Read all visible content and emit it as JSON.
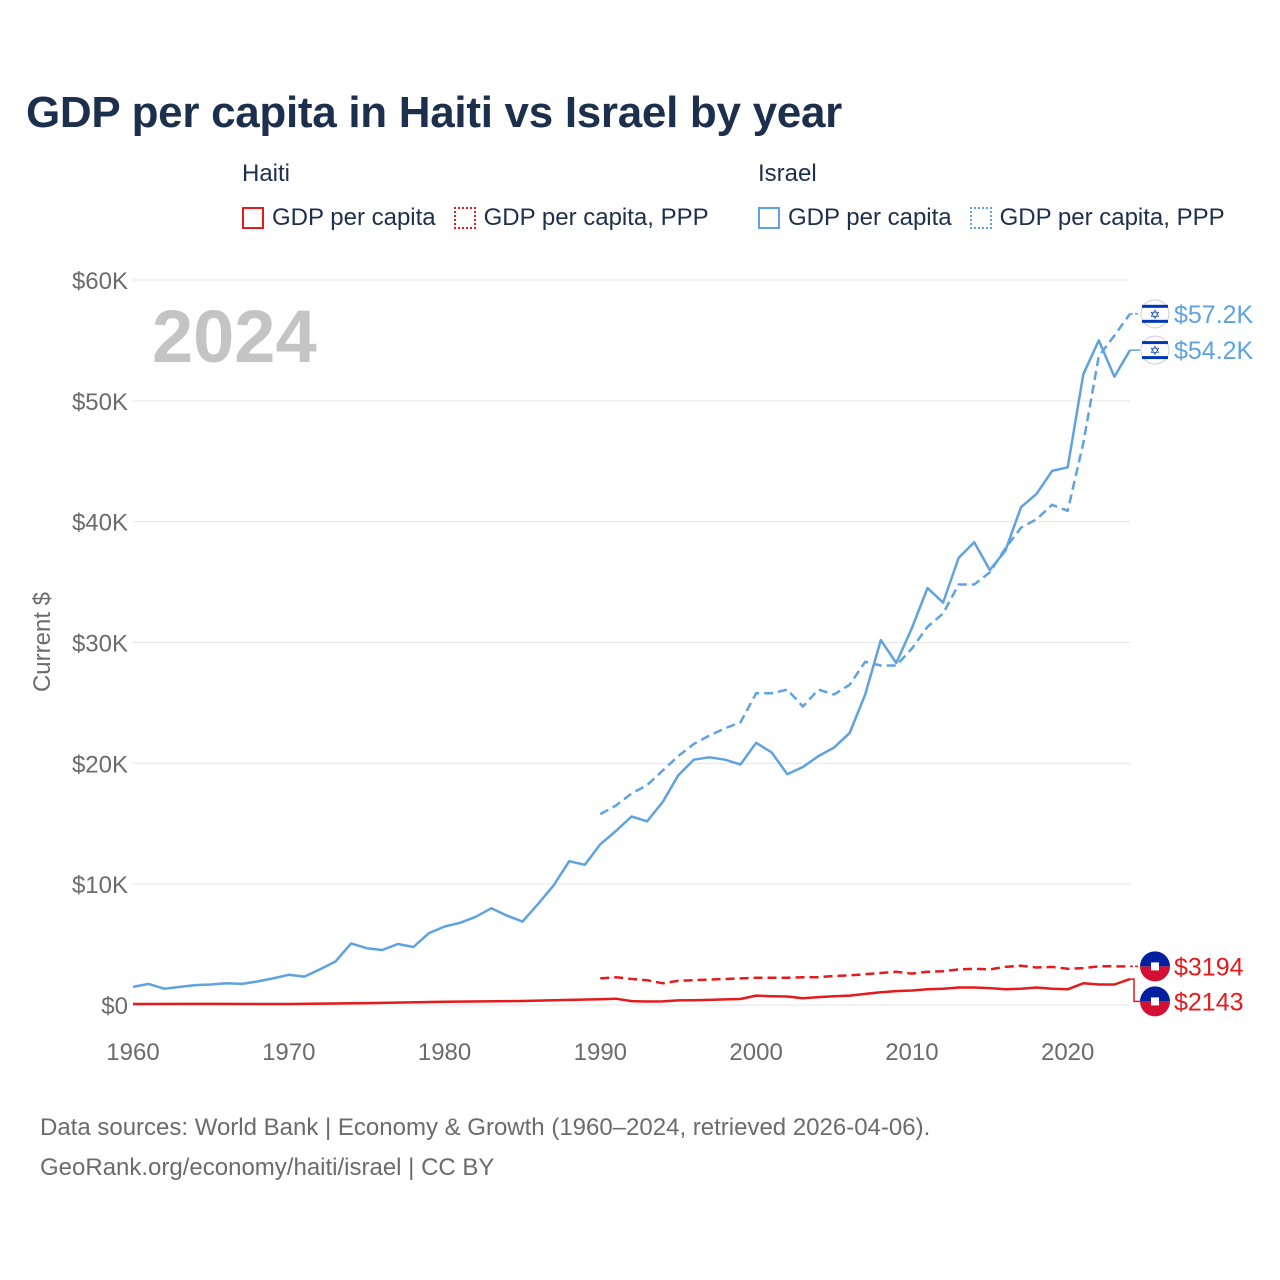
{
  "title": "GDP per capita in Haiti vs Israel by year",
  "colors": {
    "haiti": "#e41a1c",
    "israel": "#5fa2e0",
    "text": "#1c2f4d",
    "muted": "#6b6b6b",
    "grid": "#e6e6e6",
    "year_watermark": "#c4c4c4"
  },
  "legend": {
    "haiti": {
      "country": "Haiti",
      "series": [
        "GDP per capita",
        "GDP per capita, PPP"
      ]
    },
    "israel": {
      "country": "Israel",
      "series": [
        "GDP per capita",
        "GDP per capita, PPP"
      ]
    }
  },
  "year_watermark": "2024",
  "footer": {
    "line1": "Data sources: World Bank | Economy & Growth (1960–2024, retrieved 2026-04-06).",
    "line2": "GeoRank.org/economy/haiti/israel | CC BY"
  },
  "chart_data": {
    "type": "line",
    "title": "GDP per capita in Haiti vs Israel by year",
    "xlabel": "",
    "ylabel": "Current $",
    "xlim": [
      1960,
      2024
    ],
    "ylim": [
      0,
      60000
    ],
    "x_ticks": [
      1960,
      1970,
      1980,
      1990,
      2000,
      2010,
      2020
    ],
    "x_tick_labels": [
      "1960",
      "1970",
      "1980",
      "1990",
      "2000",
      "2010",
      "2020"
    ],
    "y_ticks": [
      0,
      10000,
      20000,
      30000,
      40000,
      50000,
      60000
    ],
    "y_tick_labels": [
      "$0",
      "$10K",
      "$20K",
      "$30K",
      "$40K",
      "$50K",
      "$60K"
    ],
    "grid": true,
    "series": [
      {
        "name": "Israel GDP per capita",
        "country": "israel",
        "dashed": false,
        "end_label": "$54.2K",
        "x": [
          1960,
          1961,
          1962,
          1963,
          1964,
          1965,
          1966,
          1967,
          1968,
          1969,
          1970,
          1971,
          1972,
          1973,
          1974,
          1975,
          1976,
          1977,
          1978,
          1979,
          1980,
          1981,
          1982,
          1983,
          1984,
          1985,
          1986,
          1987,
          1988,
          1989,
          1990,
          1991,
          1992,
          1993,
          1994,
          1995,
          1996,
          1997,
          1998,
          1999,
          2000,
          2001,
          2002,
          2003,
          2004,
          2005,
          2006,
          2007,
          2008,
          2009,
          2010,
          2011,
          2012,
          2013,
          2014,
          2015,
          2016,
          2017,
          2018,
          2019,
          2020,
          2021,
          2022,
          2023,
          2024
        ],
        "y": [
          1500,
          1750,
          1350,
          1500,
          1650,
          1700,
          1800,
          1750,
          1950,
          2200,
          2500,
          2350,
          2950,
          3600,
          5100,
          4700,
          4550,
          5050,
          4800,
          5950,
          6500,
          6800,
          7300,
          8000,
          7400,
          6900,
          8350,
          9900,
          11900,
          11600,
          13300,
          14400,
          15600,
          15200,
          16800,
          19000,
          20300,
          20500,
          20300,
          19900,
          21700,
          20900,
          19100,
          19700,
          20600,
          21300,
          22500,
          25700,
          30200,
          28300,
          31200,
          34500,
          33300,
          37000,
          38300,
          36000,
          37600,
          41200,
          42300,
          44200,
          44500,
          52200,
          55000,
          52000,
          54200
        ]
      },
      {
        "name": "Israel GDP per capita, PPP",
        "country": "israel",
        "dashed": true,
        "end_label": "$57.2K",
        "x": [
          1990,
          1991,
          1992,
          1993,
          1994,
          1995,
          1996,
          1997,
          1998,
          1999,
          2000,
          2001,
          2002,
          2003,
          2004,
          2005,
          2006,
          2007,
          2008,
          2009,
          2010,
          2011,
          2012,
          2013,
          2014,
          2015,
          2016,
          2017,
          2018,
          2019,
          2020,
          2021,
          2022,
          2023,
          2024
        ],
        "y": [
          15800,
          16500,
          17500,
          18200,
          19400,
          20600,
          21600,
          22300,
          22900,
          23400,
          25800,
          25800,
          26100,
          24700,
          26100,
          25700,
          26500,
          28400,
          28100,
          28100,
          29500,
          31300,
          32400,
          34800,
          34800,
          35800,
          37800,
          39500,
          40200,
          41400,
          40900,
          46500,
          53700,
          55400,
          57200
        ]
      },
      {
        "name": "Haiti GDP per capita",
        "country": "haiti",
        "dashed": false,
        "end_label": "$2143",
        "x": [
          1960,
          1965,
          1970,
          1975,
          1980,
          1985,
          1988,
          1990,
          1991,
          1992,
          1993,
          1994,
          1995,
          1996,
          1997,
          1998,
          1999,
          2000,
          2001,
          2002,
          2003,
          2004,
          2005,
          2006,
          2007,
          2008,
          2009,
          2010,
          2011,
          2012,
          2013,
          2014,
          2015,
          2016,
          2017,
          2018,
          2019,
          2020,
          2021,
          2022,
          2023,
          2024
        ],
        "y": [
          80,
          90,
          80,
          160,
          270,
          330,
          420,
          470,
          520,
          320,
          290,
          300,
          380,
          390,
          420,
          460,
          500,
          780,
          730,
          700,
          560,
          650,
          720,
          780,
          920,
          1050,
          1150,
          1200,
          1300,
          1350,
          1450,
          1450,
          1400,
          1300,
          1350,
          1450,
          1350,
          1300,
          1800,
          1700,
          1700,
          2143
        ]
      },
      {
        "name": "Haiti GDP per capita, PPP",
        "country": "haiti",
        "dashed": true,
        "end_label": "$3194",
        "x": [
          1990,
          1991,
          1992,
          1993,
          1994,
          1995,
          1996,
          1997,
          1998,
          1999,
          2000,
          2001,
          2002,
          2003,
          2004,
          2005,
          2006,
          2007,
          2008,
          2009,
          2010,
          2011,
          2012,
          2013,
          2014,
          2015,
          2016,
          2017,
          2018,
          2019,
          2020,
          2021,
          2022,
          2023,
          2024
        ],
        "y": [
          2200,
          2300,
          2150,
          2050,
          1800,
          2000,
          2050,
          2100,
          2150,
          2200,
          2250,
          2250,
          2250,
          2300,
          2300,
          2400,
          2450,
          2550,
          2650,
          2750,
          2600,
          2750,
          2800,
          2950,
          3000,
          2950,
          3150,
          3250,
          3100,
          3150,
          3000,
          3050,
          3200,
          3200,
          3194
        ]
      }
    ]
  }
}
